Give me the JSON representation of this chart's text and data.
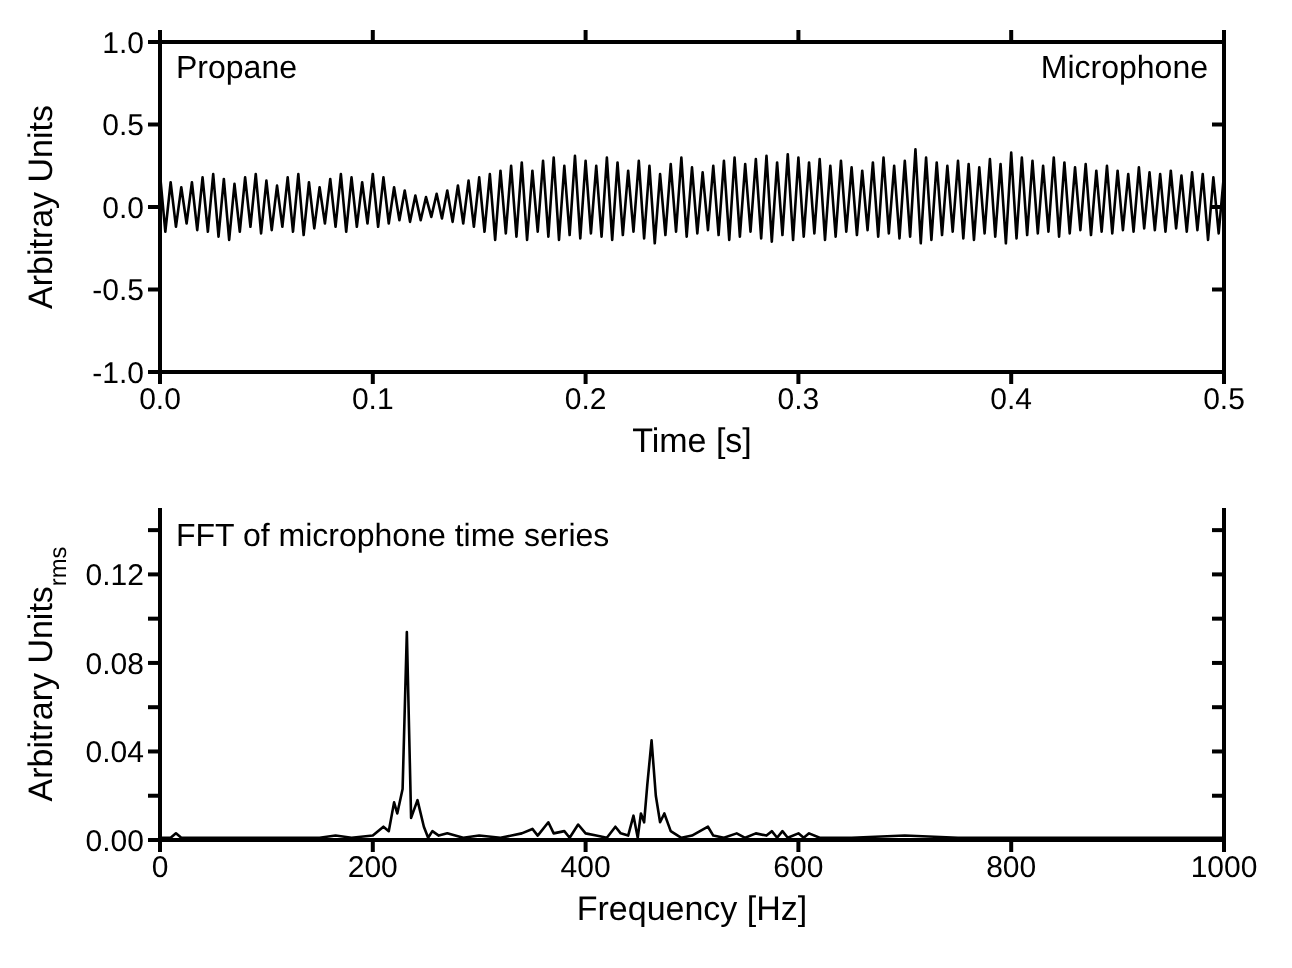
{
  "chart_data": [
    {
      "type": "line",
      "xlabel": "Time [s]",
      "ylabel": "Arbitray Units",
      "annotations": [
        "Propane",
        "Microphone"
      ],
      "xlim": [
        0,
        0.5
      ],
      "ylim": [
        -1,
        1
      ],
      "xticks": [
        {
          "value": 0,
          "label": "0.0"
        },
        0.1,
        0.2,
        0.3,
        0.4,
        0.5
      ],
      "yticks": [
        {
          "value": -1,
          "label": "-1.0"
        },
        -0.5,
        {
          "value": 0,
          "label": "0.0"
        },
        0.5,
        {
          "value": 1,
          "label": "1.0"
        }
      ],
      "marker": "none",
      "line_style": "solid",
      "x": [
        0,
        0.0025,
        0.005,
        0.0075,
        0.01,
        0.0125,
        0.015,
        0.0175,
        0.02,
        0.0225,
        0.025,
        0.0275,
        0.03,
        0.0325,
        0.035,
        0.0375,
        0.04,
        0.0425,
        0.045,
        0.0475,
        0.05,
        0.0525,
        0.055,
        0.0575,
        0.06,
        0.0625,
        0.065,
        0.0675,
        0.07,
        0.0725,
        0.075,
        0.0775,
        0.08,
        0.0825,
        0.085,
        0.0875,
        0.09,
        0.0925,
        0.095,
        0.0975,
        0.1,
        0.1025,
        0.105,
        0.1075,
        0.11,
        0.1125,
        0.115,
        0.1175,
        0.12,
        0.1225,
        0.125,
        0.1275,
        0.13,
        0.1325,
        0.135,
        0.1375,
        0.14,
        0.1425,
        0.145,
        0.1475,
        0.15,
        0.1525,
        0.155,
        0.1575,
        0.16,
        0.1625,
        0.165,
        0.1675,
        0.17,
        0.1725,
        0.175,
        0.1775,
        0.18,
        0.1825,
        0.185,
        0.1875,
        0.19,
        0.1925,
        0.195,
        0.1975,
        0.2,
        0.2025,
        0.205,
        0.2075,
        0.21,
        0.2125,
        0.215,
        0.2175,
        0.22,
        0.2225,
        0.225,
        0.2275,
        0.23,
        0.2325,
        0.235,
        0.2375,
        0.24,
        0.2425,
        0.245,
        0.2475,
        0.25,
        0.2525,
        0.255,
        0.2575,
        0.26,
        0.2625,
        0.265,
        0.2675,
        0.27,
        0.2725,
        0.275,
        0.2775,
        0.28,
        0.2825,
        0.285,
        0.2875,
        0.29,
        0.2925,
        0.295,
        0.2975,
        0.3,
        0.3025,
        0.305,
        0.3075,
        0.31,
        0.3125,
        0.315,
        0.3175,
        0.32,
        0.3225,
        0.325,
        0.3275,
        0.33,
        0.3325,
        0.335,
        0.3375,
        0.34,
        0.3425,
        0.345,
        0.3475,
        0.35,
        0.3525,
        0.355,
        0.3575,
        0.36,
        0.3625,
        0.365,
        0.3675,
        0.37,
        0.3725,
        0.375,
        0.3775,
        0.38,
        0.3825,
        0.385,
        0.3875,
        0.39,
        0.3925,
        0.395,
        0.3975,
        0.4,
        0.4025,
        0.405,
        0.4075,
        0.41,
        0.4125,
        0.415,
        0.4175,
        0.42,
        0.4225,
        0.425,
        0.4275,
        0.43,
        0.4325,
        0.435,
        0.4375,
        0.44,
        0.4425,
        0.445,
        0.4475,
        0.45,
        0.4525,
        0.455,
        0.4575,
        0.46,
        0.4625,
        0.465,
        0.4675,
        0.47,
        0.4725,
        0.475,
        0.4775,
        0.48,
        0.4825,
        0.485,
        0.4875,
        0.49,
        0.4925,
        0.495,
        0.4975,
        0.5
      ],
      "series": [
        {
          "color": "#000000",
          "values": [
            0.2,
            -0.15,
            0.15,
            -0.12,
            0.12,
            -0.1,
            0.15,
            -0.14,
            0.18,
            -0.15,
            0.2,
            -0.18,
            0.17,
            -0.2,
            0.14,
            -0.15,
            0.18,
            -0.12,
            0.2,
            -0.16,
            0.16,
            -0.14,
            0.13,
            -0.12,
            0.18,
            -0.15,
            0.2,
            -0.17,
            0.15,
            -0.13,
            0.12,
            -0.1,
            0.17,
            -0.12,
            0.2,
            -0.15,
            0.18,
            -0.12,
            0.15,
            -0.1,
            0.2,
            -0.12,
            0.18,
            -0.1,
            0.12,
            -0.08,
            0.1,
            -0.09,
            0.07,
            -0.08,
            0.06,
            -0.06,
            0.08,
            -0.07,
            0.1,
            -0.09,
            0.13,
            -0.1,
            0.16,
            -0.12,
            0.18,
            -0.15,
            0.2,
            -0.2,
            0.22,
            -0.16,
            0.25,
            -0.18,
            0.27,
            -0.2,
            0.22,
            -0.15,
            0.28,
            -0.18,
            0.3,
            -0.2,
            0.25,
            -0.17,
            0.31,
            -0.19,
            0.28,
            -0.16,
            0.25,
            -0.18,
            0.3,
            -0.2,
            0.27,
            -0.17,
            0.22,
            -0.15,
            0.28,
            -0.19,
            0.25,
            -0.22,
            0.2,
            -0.17,
            0.26,
            -0.15,
            0.3,
            -0.18,
            0.24,
            -0.16,
            0.21,
            -0.14,
            0.25,
            -0.17,
            0.28,
            -0.2,
            0.3,
            -0.18,
            0.26,
            -0.15,
            0.29,
            -0.19,
            0.31,
            -0.21,
            0.27,
            -0.17,
            0.32,
            -0.2,
            0.3,
            -0.18,
            0.27,
            -0.16,
            0.29,
            -0.2,
            0.25,
            -0.18,
            0.28,
            -0.15,
            0.24,
            -0.17,
            0.22,
            -0.14,
            0.27,
            -0.18,
            0.3,
            -0.16,
            0.25,
            -0.19,
            0.28,
            -0.18,
            0.35,
            -0.22,
            0.3,
            -0.2,
            0.27,
            -0.17,
            0.25,
            -0.15,
            0.28,
            -0.19,
            0.26,
            -0.2,
            0.24,
            -0.16,
            0.29,
            -0.18,
            0.26,
            -0.22,
            0.33,
            -0.19,
            0.3,
            -0.17,
            0.28,
            -0.16,
            0.25,
            -0.15,
            0.3,
            -0.18,
            0.27,
            -0.16,
            0.24,
            -0.14,
            0.26,
            -0.17,
            0.22,
            -0.15,
            0.25,
            -0.16,
            0.22,
            -0.14,
            0.2,
            -0.15,
            0.24,
            -0.13,
            0.21,
            -0.14,
            0.2,
            -0.15,
            0.22,
            -0.13,
            0.19,
            -0.15,
            0.21,
            -0.14,
            0.2,
            -0.2,
            0.18,
            -0.16,
            0.2
          ]
        }
      ]
    },
    {
      "type": "line",
      "xlabel": "Frequency [Hz]",
      "ylabel": "Arbitrary Units$_{rms}$",
      "annotations": [
        "FFT of microphone time series"
      ],
      "xlim": [
        0,
        1000
      ],
      "ylim": [
        0,
        0.15
      ],
      "xticks": [
        0,
        200,
        400,
        600,
        800,
        1000
      ],
      "yticks": [
        {
          "value": 0,
          "label": "0.00"
        },
        {
          "value": 0.02,
          "label": null
        },
        {
          "value": 0.04,
          "label": "0.04"
        },
        {
          "value": 0.06,
          "label": null
        },
        {
          "value": 0.08,
          "label": "0.08"
        },
        {
          "value": 0.1,
          "label": null
        },
        {
          "value": 0.12,
          "label": "0.12"
        },
        {
          "value": 0.14,
          "label": null
        }
      ],
      "marker": "none",
      "line_style": "solid",
      "x": [
        0,
        10,
        15,
        20,
        50,
        100,
        150,
        165,
        180,
        200,
        210,
        215,
        220,
        223,
        228,
        232,
        236,
        242,
        248,
        252,
        256,
        262,
        270,
        285,
        300,
        320,
        340,
        350,
        355,
        365,
        370,
        380,
        385,
        393,
        400,
        410,
        420,
        428,
        433,
        440,
        445,
        449,
        452,
        455,
        458,
        462,
        466,
        470,
        474,
        480,
        490,
        500,
        515,
        520,
        530,
        542,
        550,
        560,
        570,
        575,
        580,
        585,
        590,
        600,
        605,
        610,
        620,
        650,
        700,
        750,
        800,
        850,
        900,
        950,
        1000
      ],
      "series": [
        {
          "color": "#000000",
          "values": [
            0.001,
            0.001,
            0.003,
            0.001,
            0.001,
            0.001,
            0.001,
            0.002,
            0.001,
            0.002,
            0.006,
            0.004,
            0.017,
            0.012,
            0.023,
            0.094,
            0.01,
            0.018,
            0.006,
            0.001,
            0.004,
            0.002,
            0.003,
            0.001,
            0.002,
            0.001,
            0.003,
            0.005,
            0.002,
            0.008,
            0.003,
            0.004,
            0.001,
            0.007,
            0.003,
            0.002,
            0.001,
            0.006,
            0.003,
            0.002,
            0.011,
            0.001,
            0.012,
            0.008,
            0.025,
            0.045,
            0.02,
            0.008,
            0.012,
            0.004,
            0.001,
            0.002,
            0.006,
            0.002,
            0.001,
            0.003,
            0.001,
            0.003,
            0.002,
            0.004,
            0.001,
            0.004,
            0.001,
            0.003,
            0.001,
            0.003,
            0.001,
            0.001,
            0.002,
            0.001,
            0.001,
            0.001,
            0.001,
            0.001,
            0.001
          ]
        }
      ]
    }
  ]
}
